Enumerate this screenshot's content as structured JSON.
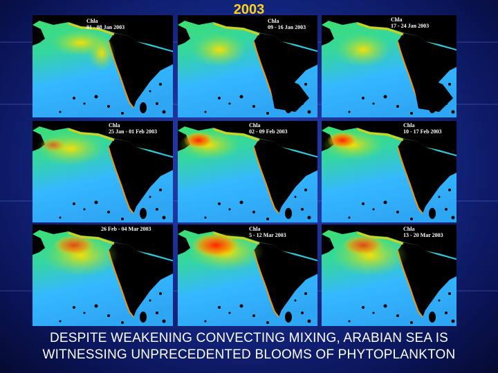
{
  "year": "2003",
  "panels": [
    {
      "var": "Chla",
      "period": "01 - 08 Jan 2003"
    },
    {
      "var": "Chla",
      "period": "09 - 16 Jan 2003"
    },
    {
      "var": "Chla",
      "period": "17 - 24 Jan 2003"
    },
    {
      "var": "Chla",
      "period": "25 Jan - 01 Feb 2003"
    },
    {
      "var": "Chla",
      "period": "02 - 09 Feb 2003"
    },
    {
      "var": "Chla",
      "period": "10 - 17 Feb 2003"
    },
    {
      "var": "",
      "period": "26 Feb - 04 Mar 2003"
    },
    {
      "var": "Chla",
      "period": "5 - 12 Mar 2003"
    },
    {
      "var": "Chla",
      "period": "13 - 20 Mar 2003"
    }
  ],
  "caption": {
    "line1": "DESPITE WEAKENING CONVECTING MIXING, ARABIAN SEA IS",
    "line2": "WITNESSING UNPRECEDENTED BLOOMS OF PHYTOPLANKTON"
  },
  "colors": {
    "title": "#ffd21a",
    "caption": "#ffffff",
    "land": "#000000",
    "ocean_low": "#3fb6ff",
    "ocean_mid": "#39e07a",
    "ocean_high": "#ffd800",
    "bloom": "#ff2a00"
  }
}
